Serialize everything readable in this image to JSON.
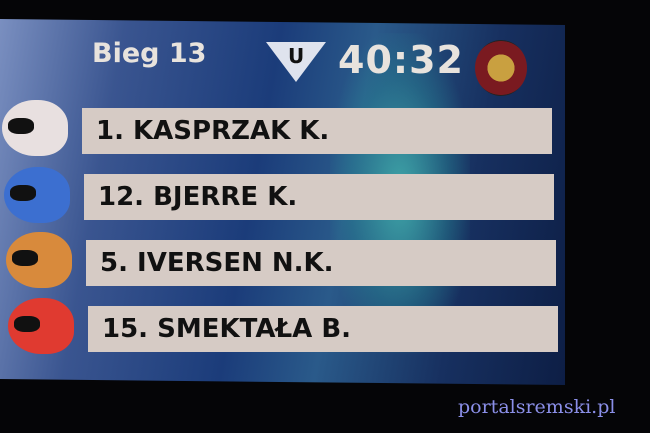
{
  "header": {
    "heat": "Bieg 13",
    "clock": "40:32"
  },
  "riders": [
    {
      "label": "1. KASPRZAK K.",
      "helmet_color": "#e8e0e0"
    },
    {
      "label": "12. BJERRE K.",
      "helmet_color": "#3c6fd0"
    },
    {
      "label": "5. IVERSEN N.K.",
      "helmet_color": "#d88a3c"
    },
    {
      "label": "15. SMEKTAŁA B.",
      "helmet_color": "#e03a30"
    }
  ],
  "watermark": "portalsremski.pl"
}
